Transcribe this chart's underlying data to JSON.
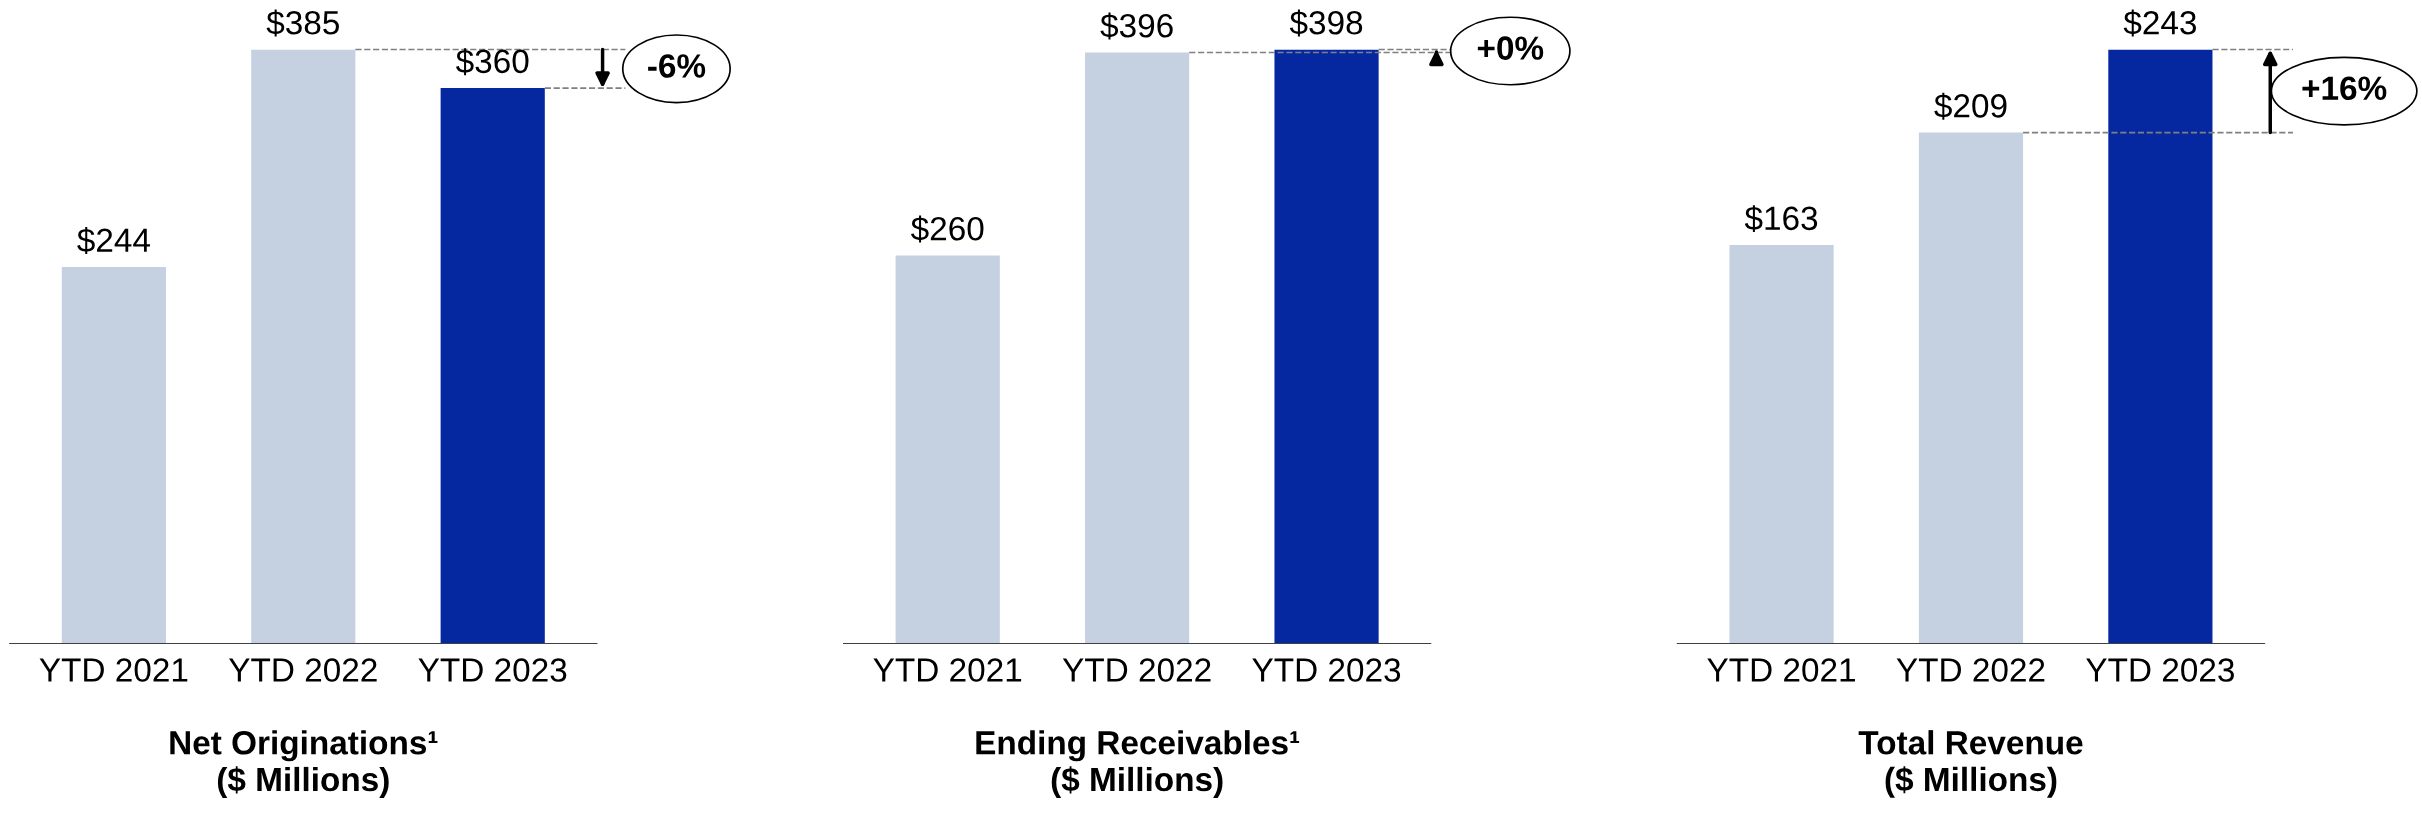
{
  "chart_data": [
    {
      "type": "bar",
      "xlabel": "Net Originations¹\n($ Millions)",
      "categories": [
        "YTD 2021",
        "YTD 2022",
        "YTD 2023"
      ],
      "values": [
        244,
        385,
        360
      ],
      "colors": [
        "#c5d0e1",
        "#c5d0e1",
        "#0527a0"
      ],
      "value_labels": [
        "$244",
        "$385",
        "$360"
      ],
      "annotations": [
        "-6%"
      ],
      "ref_lines": [
        {
          "axis": "y",
          "value": 385,
          "line_style": "dashed",
          "color": "#808080"
        },
        {
          "axis": "y",
          "value": 360,
          "line_style": "dashed",
          "color": "#808080"
        }
      ],
      "grid": false,
      "legend": false
    },
    {
      "type": "bar",
      "xlabel": "Ending Receivables¹\n($ Millions)",
      "categories": [
        "YTD 2021",
        "YTD 2022",
        "YTD 2023"
      ],
      "values": [
        260,
        396,
        398
      ],
      "colors": [
        "#c5d0e1",
        "#c5d0e1",
        "#0527a0"
      ],
      "value_labels": [
        "$260",
        "$396",
        "$398"
      ],
      "annotations": [
        "+0%"
      ],
      "ref_lines": [
        {
          "axis": "y",
          "value": 396,
          "line_style": "dashed",
          "color": "#808080"
        },
        {
          "axis": "y",
          "value": 398,
          "line_style": "dashed",
          "color": "#808080"
        }
      ],
      "grid": false,
      "legend": false
    },
    {
      "type": "bar",
      "xlabel": "Total Revenue\n($ Millions)",
      "categories": [
        "YTD 2021",
        "YTD 2022",
        "YTD 2023"
      ],
      "values": [
        163,
        209,
        243
      ],
      "colors": [
        "#c5d0e1",
        "#c5d0e1",
        "#0527a0"
      ],
      "value_labels": [
        "$163",
        "$209",
        "$243"
      ],
      "annotations": [
        "+16%"
      ],
      "ref_lines": [
        {
          "axis": "y",
          "value": 209,
          "line_style": "dashed",
          "color": "#808080"
        },
        {
          "axis": "y",
          "value": 243,
          "line_style": "dashed",
          "color": "#808080"
        }
      ],
      "grid": false,
      "legend": false
    }
  ]
}
